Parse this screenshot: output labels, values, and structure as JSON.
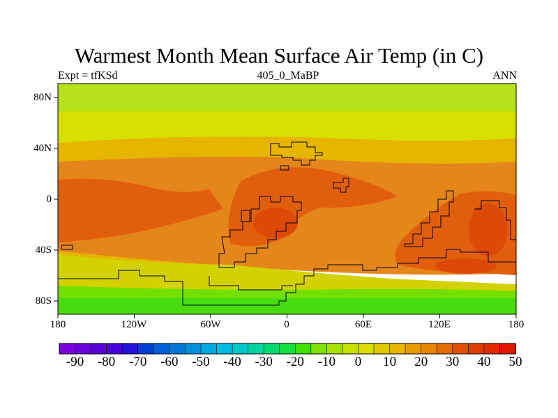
{
  "title": "Warmest Month Mean Surface Air Temp (in C)",
  "subtitle_left": "Expt = tfKSd",
  "subtitle_center": "405_0_MaBP",
  "subtitle_right": "ANN",
  "lat_labels": [
    "80N",
    "40N",
    "0",
    "40S",
    "80S"
  ],
  "lon_labels": [
    "180",
    "120W",
    "60W",
    "0",
    "60E",
    "120E",
    "180"
  ],
  "colorbar": {
    "labels": [
      "-90",
      "-80",
      "-70",
      "-60",
      "-50",
      "-40",
      "-30",
      "-20",
      "-10",
      "0",
      "10",
      "20",
      "30",
      "40",
      "50"
    ],
    "colors": [
      "#7a00dc",
      "#6a00d8",
      "#5a00d8",
      "#4800d8",
      "#2010d8",
      "#0040d0",
      "#0060d8",
      "#0078d8",
      "#0090e0",
      "#00a8e0",
      "#00bce0",
      "#00c8c8",
      "#00d4a0",
      "#00dc70",
      "#10e040",
      "#40e000",
      "#80e000",
      "#a8e000",
      "#c8e000",
      "#dcdc00",
      "#e4c800",
      "#e8b400",
      "#e89c00",
      "#e88400",
      "#e46c00",
      "#e05000",
      "#e03c00",
      "#e02c00",
      "#dc1800"
    ]
  },
  "map_colors": {
    "polar_high": "#b6e21c",
    "midlat_low": "#d8e000",
    "warm": "#e6b500",
    "hot": "#e5861a",
    "hotter": "#e15f0c",
    "hottest": "#dd4a08",
    "south_cool": "#d3d200",
    "south_green": "#74e000",
    "antarctic": "#48dc10"
  }
}
